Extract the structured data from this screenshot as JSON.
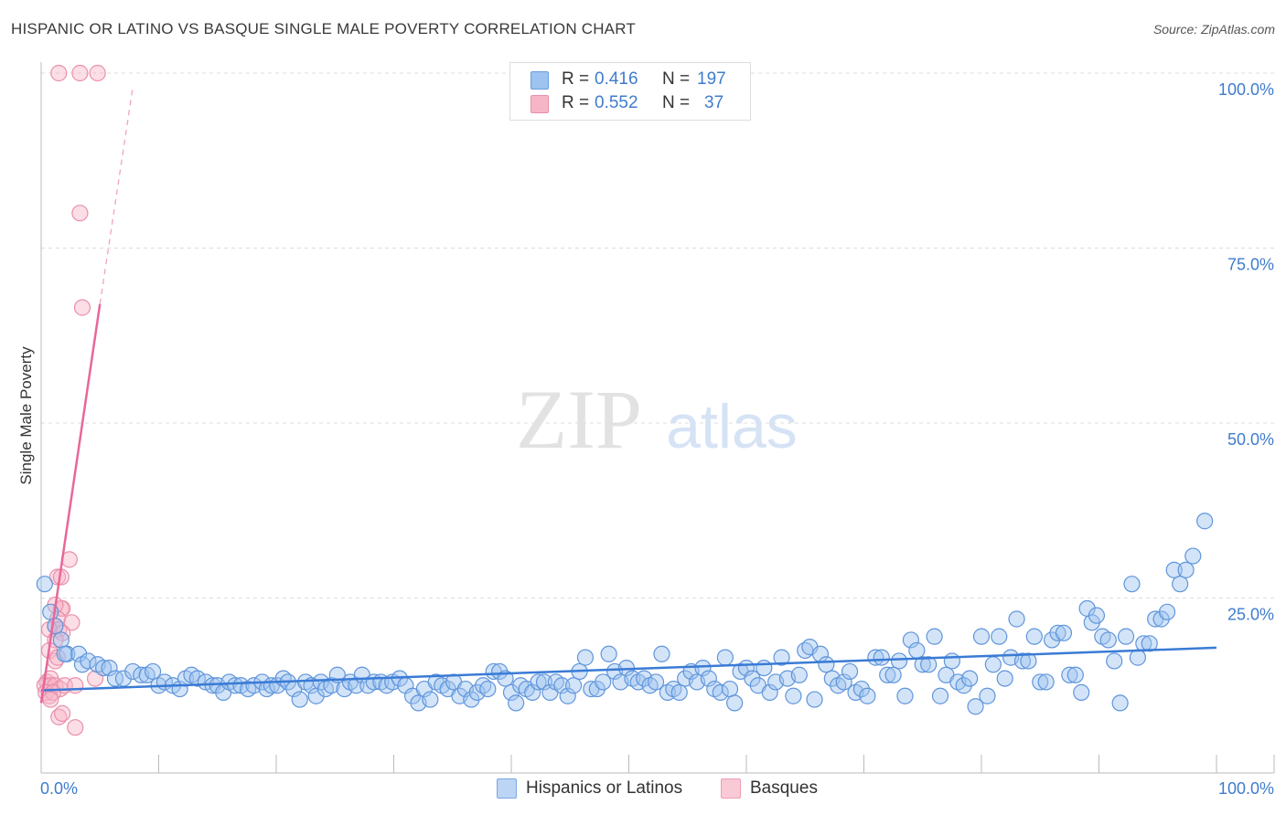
{
  "header": {
    "title": "HISPANIC OR LATINO VS BASQUE SINGLE MALE POVERTY CORRELATION CHART",
    "source": "Source: ZipAtlas.com"
  },
  "legend": {
    "r_label": "R =",
    "n_label": "N =",
    "items": [
      {
        "r": "0.416",
        "n": "197",
        "color": "#9ec3f0",
        "stroke": "#6a9de0"
      },
      {
        "r": "0.552",
        "n": "37",
        "color": "#f7b6c8",
        "stroke": "#ea8fab"
      }
    ]
  },
  "bottom_legend": [
    {
      "label": "Hispanics or Latinos",
      "color": "#bcd5f5",
      "stroke": "#7aa6e2"
    },
    {
      "label": "Basques",
      "color": "#f9c9d6",
      "stroke": "#ee9db5"
    }
  ],
  "watermark": {
    "zip": "ZIP",
    "atlas": "atlas"
  },
  "colors": {
    "blue": "#3a7bd5",
    "pink": "#e8679a",
    "axis_label": "#3f7ccc"
  },
  "chart_data": {
    "type": "scatter",
    "title": "HISPANIC OR LATINO VS BASQUE SINGLE MALE POVERTY CORRELATION CHART",
    "xlabel": "",
    "ylabel": "Single Male Poverty",
    "xlim": [
      0,
      100
    ],
    "ylim": [
      0,
      100
    ],
    "x_tick_labels": [
      "0.0%",
      "100.0%"
    ],
    "y_tick_labels": [
      "25.0%",
      "50.0%",
      "75.0%",
      "100.0%"
    ],
    "y_ticks": [
      25,
      50,
      75,
      100
    ],
    "grid": true,
    "series": [
      {
        "name": "Hispanics or Latinos",
        "trend": {
          "x": [
            0,
            100
          ],
          "y": [
            11.8,
            17.9
          ]
        },
        "points": [
          [
            0.3,
            27
          ],
          [
            0.8,
            23
          ],
          [
            1.2,
            21
          ],
          [
            1.7,
            19
          ],
          [
            2.2,
            17
          ],
          [
            2.0,
            17
          ],
          [
            3.2,
            17
          ],
          [
            3.5,
            15.5
          ],
          [
            4.0,
            16
          ],
          [
            4.8,
            15.5
          ],
          [
            5.3,
            15
          ],
          [
            5.8,
            15
          ],
          [
            6.3,
            13.5
          ],
          [
            7.0,
            13.5
          ],
          [
            7.8,
            14.5
          ],
          [
            8.5,
            14
          ],
          [
            9.0,
            14
          ],
          [
            9.5,
            14.5
          ],
          [
            10.0,
            12.5
          ],
          [
            10.5,
            13
          ],
          [
            11.2,
            12.5
          ],
          [
            11.8,
            12
          ],
          [
            12.3,
            13.5
          ],
          [
            12.8,
            14
          ],
          [
            13.3,
            13.5
          ],
          [
            14.0,
            13
          ],
          [
            14.6,
            12.5
          ],
          [
            15.0,
            12.5
          ],
          [
            15.5,
            11.5
          ],
          [
            16.0,
            13
          ],
          [
            16.5,
            12.5
          ],
          [
            17.0,
            12.5
          ],
          [
            17.6,
            12
          ],
          [
            18.1,
            12.5
          ],
          [
            18.8,
            13
          ],
          [
            19.2,
            12
          ],
          [
            19.6,
            12.5
          ],
          [
            20.1,
            12.5
          ],
          [
            20.6,
            13.5
          ],
          [
            21.0,
            13
          ],
          [
            21.5,
            12
          ],
          [
            22.0,
            10.5
          ],
          [
            22.5,
            13
          ],
          [
            23.0,
            12.5
          ],
          [
            23.4,
            11
          ],
          [
            23.8,
            13
          ],
          [
            24.2,
            12
          ],
          [
            24.7,
            12.5
          ],
          [
            25.2,
            14
          ],
          [
            25.8,
            12
          ],
          [
            26.3,
            13
          ],
          [
            26.8,
            12.5
          ],
          [
            27.3,
            14
          ],
          [
            27.8,
            12.5
          ],
          [
            28.3,
            13
          ],
          [
            28.9,
            13
          ],
          [
            29.4,
            12.5
          ],
          [
            29.9,
            13
          ],
          [
            30.5,
            13.5
          ],
          [
            31.0,
            12.5
          ],
          [
            31.6,
            11
          ],
          [
            32.1,
            10
          ],
          [
            32.6,
            12
          ],
          [
            33.1,
            10.5
          ],
          [
            33.6,
            13
          ],
          [
            34.1,
            12.5
          ],
          [
            34.6,
            12
          ],
          [
            35.1,
            13
          ],
          [
            35.6,
            11
          ],
          [
            36.1,
            12
          ],
          [
            36.6,
            10.5
          ],
          [
            37.1,
            11.5
          ],
          [
            37.6,
            12.5
          ],
          [
            38.0,
            12
          ],
          [
            38.5,
            14.5
          ],
          [
            39.0,
            14.5
          ],
          [
            39.5,
            13.5
          ],
          [
            40.0,
            11.5
          ],
          [
            40.4,
            10
          ],
          [
            40.8,
            12.5
          ],
          [
            41.3,
            12
          ],
          [
            41.8,
            11.5
          ],
          [
            42.3,
            13
          ],
          [
            42.8,
            13
          ],
          [
            43.3,
            11.5
          ],
          [
            43.8,
            13
          ],
          [
            44.3,
            12.5
          ],
          [
            44.8,
            11
          ],
          [
            45.3,
            12.5
          ],
          [
            45.8,
            14.5
          ],
          [
            46.3,
            16.5
          ],
          [
            46.8,
            12
          ],
          [
            47.3,
            12
          ],
          [
            47.8,
            13
          ],
          [
            48.3,
            17
          ],
          [
            48.8,
            14.5
          ],
          [
            49.3,
            13
          ],
          [
            49.8,
            15
          ],
          [
            50.3,
            13.5
          ],
          [
            50.8,
            13
          ],
          [
            51.3,
            13.5
          ],
          [
            51.8,
            12.5
          ],
          [
            52.3,
            13
          ],
          [
            52.8,
            17
          ],
          [
            53.3,
            11.5
          ],
          [
            53.8,
            12
          ],
          [
            54.3,
            11.5
          ],
          [
            54.8,
            13.5
          ],
          [
            55.3,
            14.5
          ],
          [
            55.8,
            13
          ],
          [
            56.3,
            15
          ],
          [
            56.8,
            13.5
          ],
          [
            57.3,
            12
          ],
          [
            57.8,
            11.5
          ],
          [
            58.2,
            16.5
          ],
          [
            58.6,
            12
          ],
          [
            59.0,
            10
          ],
          [
            59.5,
            14.5
          ],
          [
            60.0,
            15
          ],
          [
            60.5,
            13.5
          ],
          [
            61.0,
            12.5
          ],
          [
            61.5,
            15
          ],
          [
            62.0,
            11.5
          ],
          [
            62.5,
            13
          ],
          [
            63.0,
            16.5
          ],
          [
            63.5,
            13.5
          ],
          [
            64.0,
            11
          ],
          [
            64.5,
            14
          ],
          [
            65.0,
            17.5
          ],
          [
            65.4,
            18
          ],
          [
            65.8,
            10.5
          ],
          [
            66.3,
            17
          ],
          [
            66.8,
            15.5
          ],
          [
            67.3,
            13.5
          ],
          [
            67.8,
            12.5
          ],
          [
            68.3,
            13
          ],
          [
            68.8,
            14.5
          ],
          [
            69.3,
            11.5
          ],
          [
            69.8,
            12
          ],
          [
            70.3,
            11
          ],
          [
            71.0,
            16.5
          ],
          [
            71.5,
            16.5
          ],
          [
            72.0,
            14
          ],
          [
            72.5,
            14
          ],
          [
            73.0,
            16
          ],
          [
            73.5,
            11
          ],
          [
            74.0,
            19
          ],
          [
            74.5,
            17.5
          ],
          [
            75.0,
            15.5
          ],
          [
            75.5,
            15.5
          ],
          [
            76.0,
            19.5
          ],
          [
            76.5,
            11
          ],
          [
            77.0,
            14
          ],
          [
            77.5,
            16
          ],
          [
            78.0,
            13
          ],
          [
            78.5,
            12.5
          ],
          [
            79.0,
            13.5
          ],
          [
            79.5,
            9.5
          ],
          [
            80.0,
            19.5
          ],
          [
            80.5,
            11
          ],
          [
            81.0,
            15.5
          ],
          [
            81.5,
            19.5
          ],
          [
            82.0,
            13.5
          ],
          [
            82.5,
            16.5
          ],
          [
            83.0,
            22
          ],
          [
            83.5,
            16
          ],
          [
            84.0,
            16
          ],
          [
            84.5,
            19.5
          ],
          [
            85.0,
            13
          ],
          [
            85.5,
            13
          ],
          [
            86.0,
            19
          ],
          [
            86.5,
            20
          ],
          [
            87.0,
            20
          ],
          [
            87.5,
            14
          ],
          [
            88.0,
            14
          ],
          [
            88.5,
            11.5
          ],
          [
            89.0,
            23.5
          ],
          [
            89.4,
            21.5
          ],
          [
            89.8,
            22.5
          ],
          [
            90.3,
            19.5
          ],
          [
            90.8,
            19
          ],
          [
            91.3,
            16
          ],
          [
            91.8,
            10
          ],
          [
            92.3,
            19.5
          ],
          [
            92.8,
            27
          ],
          [
            93.3,
            16.5
          ],
          [
            93.8,
            18.5
          ],
          [
            94.3,
            18.5
          ],
          [
            94.8,
            22
          ],
          [
            95.3,
            22
          ],
          [
            95.8,
            23
          ],
          [
            96.4,
            29
          ],
          [
            96.9,
            27
          ],
          [
            97.4,
            29
          ],
          [
            98.0,
            31
          ],
          [
            99.0,
            36
          ]
        ]
      },
      {
        "name": "Basques",
        "trend_solid": {
          "x": [
            0,
            5
          ],
          "y": [
            10,
            67
          ]
        },
        "trend_dashed": {
          "x": [
            5,
            7.8
          ],
          "y": [
            67,
            98
          ]
        },
        "points": [
          [
            1.5,
            100
          ],
          [
            3.3,
            100
          ],
          [
            4.8,
            100
          ],
          [
            3.3,
            80
          ],
          [
            3.5,
            66.5
          ],
          [
            2.4,
            30.5
          ],
          [
            1.4,
            28
          ],
          [
            1.7,
            28
          ],
          [
            1.7,
            23.5
          ],
          [
            1.8,
            23.5
          ],
          [
            1.2,
            24
          ],
          [
            1.4,
            22
          ],
          [
            2.6,
            21.5
          ],
          [
            1.2,
            21
          ],
          [
            1.5,
            20.5
          ],
          [
            0.7,
            20.5
          ],
          [
            1.8,
            20
          ],
          [
            1.2,
            19
          ],
          [
            0.7,
            17.5
          ],
          [
            1.2,
            16
          ],
          [
            1.4,
            16.5
          ],
          [
            0.5,
            13
          ],
          [
            0.8,
            13.5
          ],
          [
            0.3,
            12.5
          ],
          [
            0.8,
            12.5
          ],
          [
            1.2,
            12.5
          ],
          [
            1.6,
            12
          ],
          [
            2.0,
            12.5
          ],
          [
            2.9,
            12.5
          ],
          [
            0.4,
            11.5
          ],
          [
            0.7,
            11
          ],
          [
            1.0,
            11.5
          ],
          [
            0.8,
            10.5
          ],
          [
            1.5,
            8
          ],
          [
            1.8,
            8.5
          ],
          [
            2.9,
            6.5
          ],
          [
            4.6,
            13.5
          ]
        ]
      }
    ]
  }
}
